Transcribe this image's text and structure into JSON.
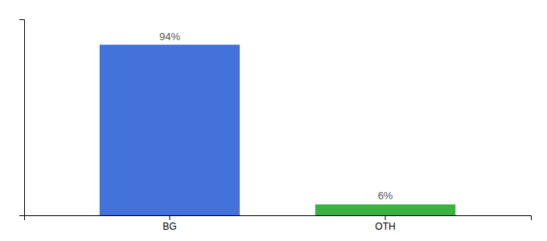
{
  "chart_data": {
    "type": "bar",
    "categories": [
      "BG",
      "OTH"
    ],
    "values": [
      94,
      6
    ],
    "value_labels": [
      "94%",
      "6%"
    ],
    "colors": [
      "#4472DB",
      "#3CB040"
    ],
    "ylim": [
      0,
      108
    ],
    "data_labels": true,
    "tick_labels": "x",
    "grid": false
  }
}
